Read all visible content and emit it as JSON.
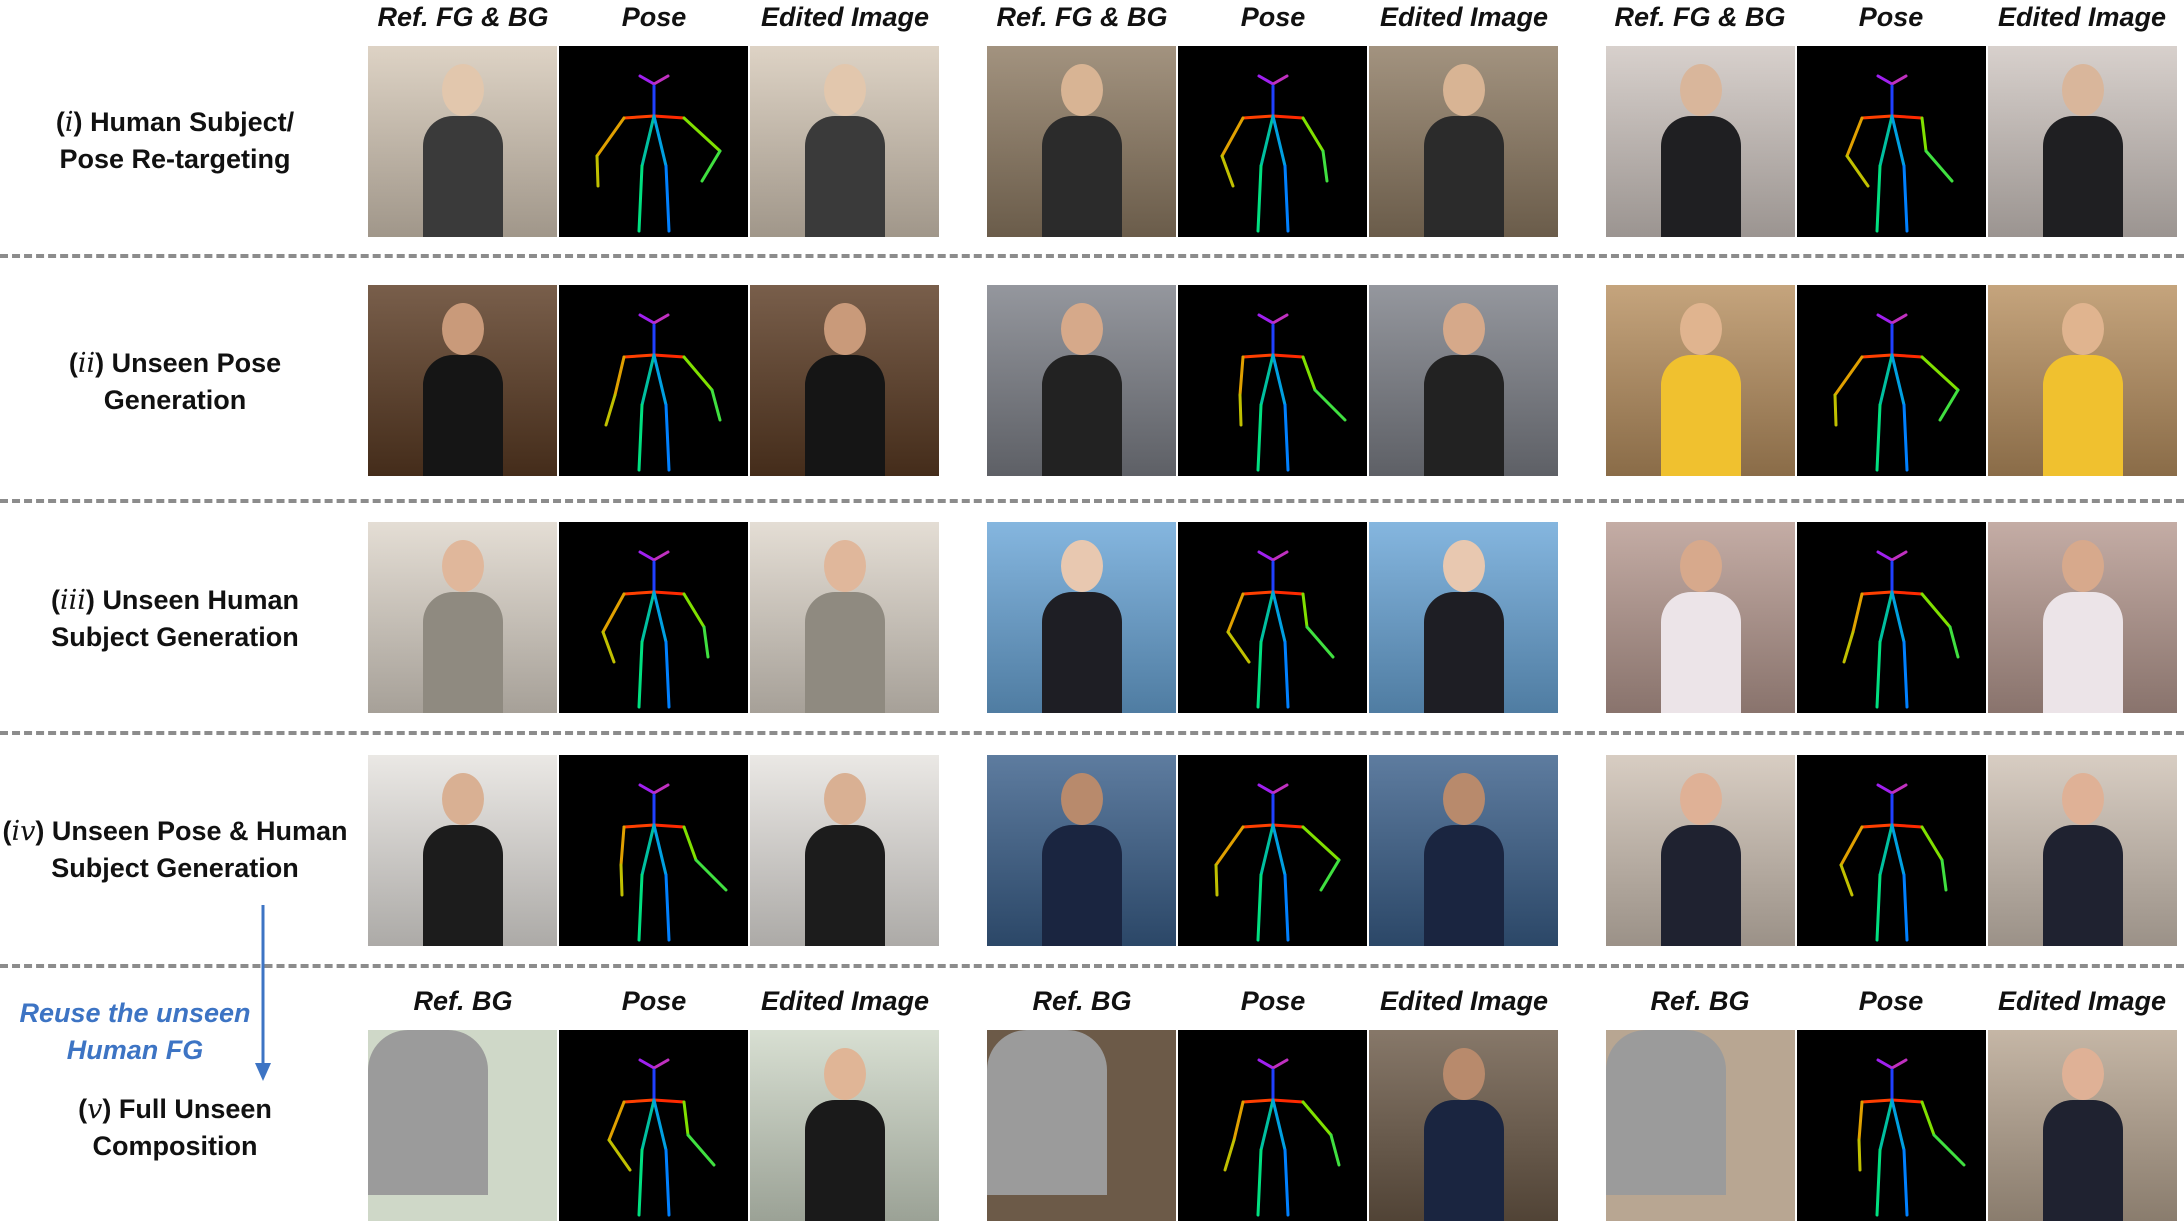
{
  "column_headers": {
    "top": [
      "Ref. FG & BG",
      "Pose",
      "Edited Image",
      "Ref. FG & BG",
      "Pose",
      "Edited Image",
      "Ref. FG & BG",
      "Pose",
      "Edited Image"
    ],
    "bottom": [
      "Ref. BG",
      "Pose",
      "Edited Image",
      "Ref. BG",
      "Pose",
      "Edited Image",
      "Ref. BG",
      "Pose",
      "Edited Image"
    ]
  },
  "rows": [
    {
      "numeral": "i",
      "line1": "Human Subject/",
      "line2": "Pose Re-targeting"
    },
    {
      "numeral": "ii",
      "line1": "Unseen Pose",
      "line2": "Generation"
    },
    {
      "numeral": "iii",
      "line1": "Unseen Human",
      "line2": "Subject Generation"
    },
    {
      "numeral": "iv",
      "line1": "Unseen Pose & Human",
      "line2": "Subject Generation"
    },
    {
      "numeral": "v",
      "line1": "Full Unseen",
      "line2": "Composition"
    }
  ],
  "reuse_note": {
    "line1": "Reuse the unseen",
    "line2": "Human  FG"
  },
  "colors": {
    "accent": "#3d74c4",
    "separator": "#8c8c8c",
    "pose_bg": "#000000",
    "mask": "#9e9e9e"
  },
  "open_paren": "(",
  "close_paren": ")"
}
